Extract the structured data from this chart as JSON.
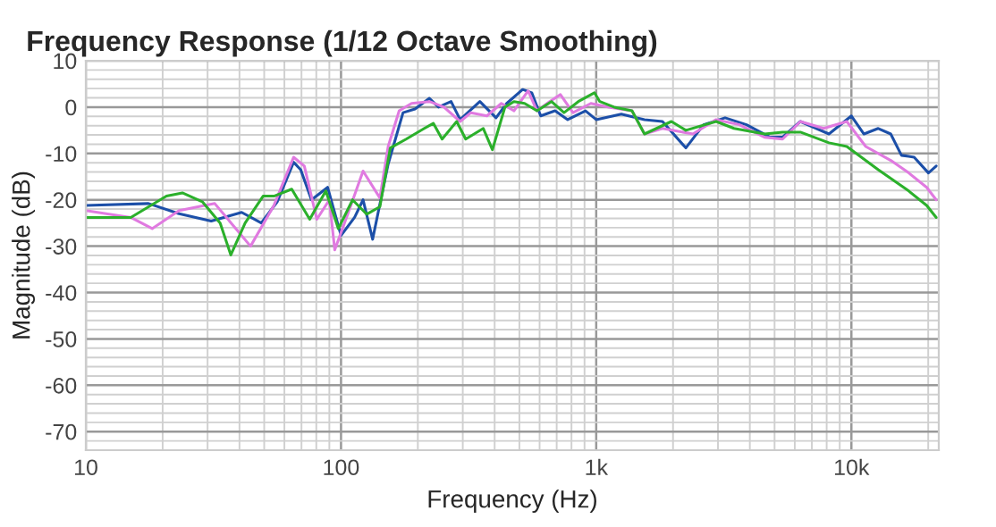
{
  "chart_data": {
    "type": "line",
    "title": "Frequency Response (1/12 Octave Smoothing)",
    "xlabel": "Frequency (Hz)",
    "ylabel": "Magnitude (dB)",
    "log": "x",
    "xlim": [
      10,
      22000
    ],
    "ylim": [
      -74,
      10
    ],
    "xticks": [
      10,
      100,
      {
        "value": 1000,
        "label": "1k"
      },
      {
        "value": 10000,
        "label": "10k"
      }
    ],
    "yticks": [
      -70,
      -60,
      -50,
      -40,
      -30,
      -20,
      -10,
      0,
      10
    ],
    "grid": true,
    "legend": false,
    "marker": "none",
    "line_style": "solid",
    "series": [
      {
        "color": "#1c4fa8",
        "x": [
          10,
          17.6,
          23.2,
          31,
          40.8,
          48.7,
          56.3,
          65.2,
          69.5,
          76.6,
          88.6,
          100,
          113,
          122,
          133,
          153,
          175,
          195,
          222,
          241,
          270,
          293,
          350,
          405,
          446,
          515,
          559,
          606,
          690,
          773,
          908,
          1000,
          1254,
          1546,
          1818,
          2245,
          2636,
          3199,
          3881,
          4797,
          5373,
          6310,
          8166,
          10000,
          11200,
          12740,
          14260,
          15710,
          17610,
          20040,
          21500
        ],
        "values": [
          -21.2,
          -20.8,
          -23,
          -24.6,
          -22.7,
          -25,
          -20.4,
          -11.9,
          -13.5,
          -20,
          -17.3,
          -27.7,
          -23.8,
          -20,
          -28.5,
          -12.3,
          -1.2,
          -0.4,
          1.9,
          0,
          1.2,
          -2.7,
          1.2,
          -2.3,
          0.8,
          3.8,
          3.1,
          -1.9,
          -0.8,
          -2.7,
          -0.8,
          -2.7,
          -1.5,
          -2.7,
          -3.1,
          -8.8,
          -3.8,
          -2.3,
          -3.8,
          -6.5,
          -6.5,
          -3.1,
          -5.8,
          -1.9,
          -5.8,
          -4.6,
          -5.8,
          -10.4,
          -10.8,
          -14.2,
          -12.7
        ]
      },
      {
        "color": "#e07ae0",
        "x": [
          10,
          15,
          18.2,
          23.2,
          32,
          44.2,
          54.6,
          65.2,
          71.8,
          80.4,
          90,
          94.5,
          107.5,
          122,
          142,
          153,
          169,
          189,
          222,
          253,
          293,
          323,
          373,
          425,
          476,
          541,
          586,
          657,
          724,
          811,
          953,
          1120,
          1381,
          1546,
          1818,
          2393,
          2951,
          3639,
          4568,
          5373,
          6310,
          7786,
          9594,
          11380,
          14260,
          16780,
          19720,
          21500
        ],
        "values": [
          -22.3,
          -23.8,
          -26.2,
          -22.3,
          -20.8,
          -30,
          -21.2,
          -10.8,
          -12.7,
          -24.2,
          -20,
          -30.8,
          -22.3,
          -13.8,
          -19.6,
          -8.5,
          -0.8,
          0.8,
          1.2,
          0,
          -3.1,
          -1.2,
          -1.9,
          0.8,
          -0.8,
          3.5,
          -0.8,
          1.2,
          2.7,
          -1.2,
          0.8,
          0,
          -0.8,
          -5.8,
          -4.6,
          -5.8,
          -2.7,
          -3.8,
          -6.5,
          -6.9,
          -3.1,
          -4.6,
          -3.1,
          -8.5,
          -11.5,
          -14.2,
          -17.3,
          -20
        ]
      },
      {
        "color": "#2bb02b",
        "x": [
          10,
          15,
          20.7,
          23.9,
          28.6,
          33.6,
          37,
          42.1,
          49.5,
          54.6,
          64.1,
          75.4,
          87.2,
          97.6,
          111,
          126,
          142,
          156,
          180,
          212,
          230,
          249,
          284,
          308,
          361,
          392,
          439,
          476,
          524,
          586,
          668,
          748,
          851,
          984,
          1033,
          1175,
          1381,
          1546,
          1971,
          2245,
          2951,
          3467,
          4568,
          5373,
          6310,
          8166,
          9594,
          12740,
          16780,
          19720,
          21500
        ],
        "values": [
          -23.8,
          -23.8,
          -19.2,
          -18.5,
          -20.4,
          -25,
          -31.9,
          -25,
          -19.2,
          -19.2,
          -17.7,
          -24.2,
          -18.1,
          -26.2,
          -20,
          -23.1,
          -21.5,
          -8.8,
          -6.9,
          -4.6,
          -3.5,
          -6.9,
          -3.1,
          -6.9,
          -4.6,
          -9.2,
          0,
          1.2,
          0.8,
          -0.8,
          1.2,
          -1.2,
          1.2,
          3.1,
          1.2,
          0,
          -0.8,
          -5.8,
          -3.1,
          -5,
          -3.1,
          -4.6,
          -5.8,
          -5.4,
          -5.4,
          -7.7,
          -8.5,
          -13.5,
          -18.1,
          -21.2,
          -23.8
        ]
      }
    ]
  }
}
